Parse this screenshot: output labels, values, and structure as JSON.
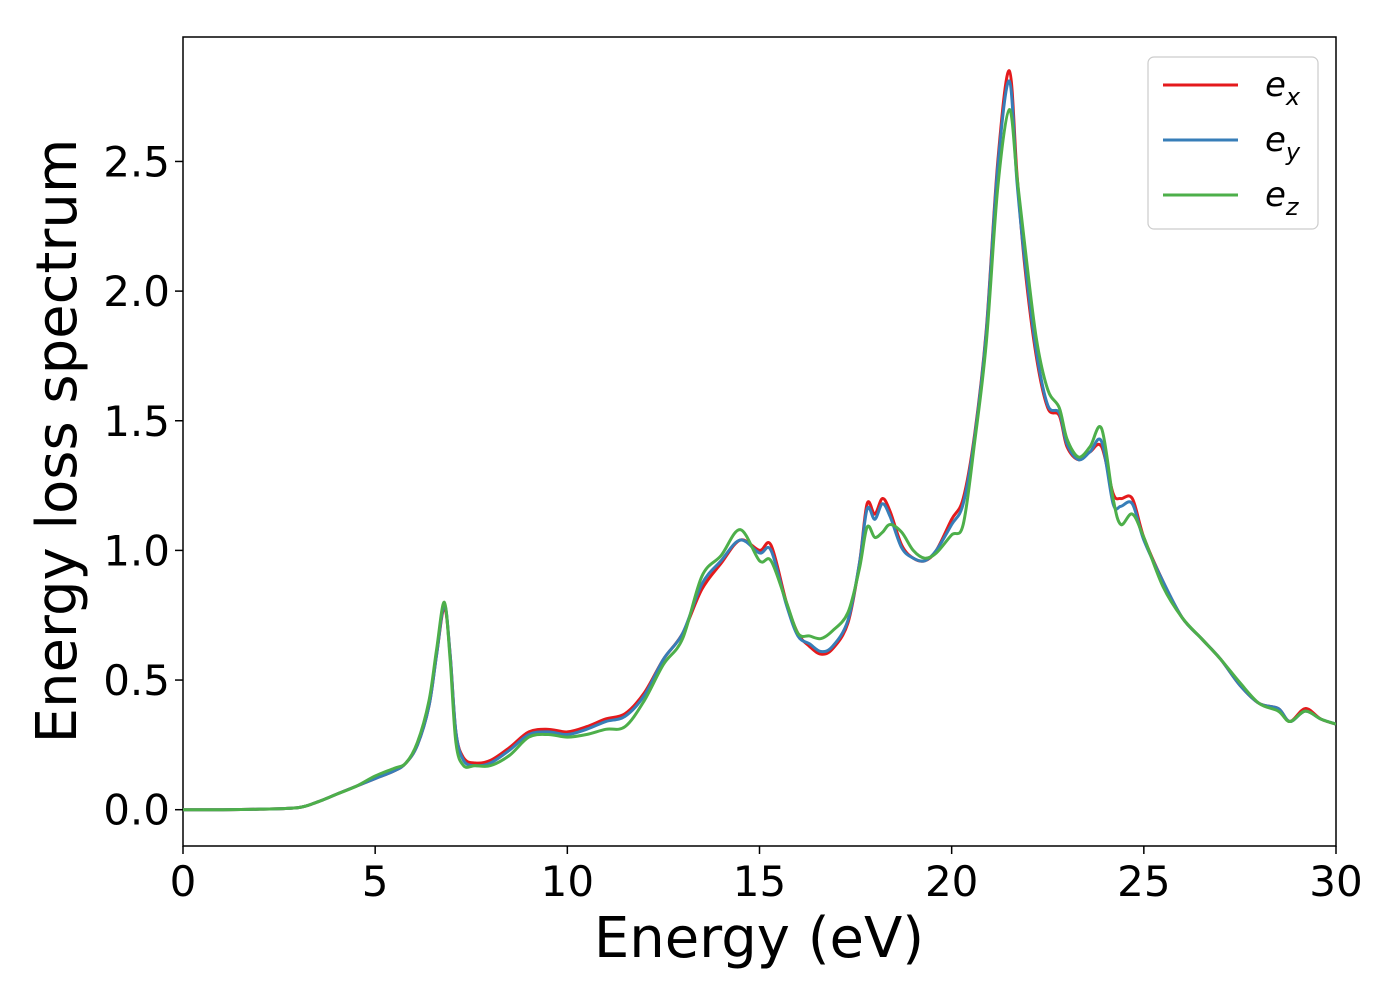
{
  "chart_data": {
    "type": "line",
    "xlabel": "Energy (eV)",
    "ylabel": "Energy loss spectrum",
    "xlim": [
      0,
      30
    ],
    "ylim": [
      -0.14,
      2.98
    ],
    "xticks": [
      0,
      5,
      10,
      15,
      20,
      25,
      30
    ],
    "xtick_labels": [
      "0",
      "5",
      "10",
      "15",
      "20",
      "25",
      "30"
    ],
    "yticks": [
      0.0,
      0.5,
      1.0,
      1.5,
      2.0,
      2.5
    ],
    "ytick_labels": [
      "0.0",
      "0.5",
      "1.0",
      "1.5",
      "2.0",
      "2.5"
    ],
    "grid": false,
    "legend_position": "top-right",
    "series": [
      {
        "name": "e_x",
        "label_base": "e",
        "label_sub": "x",
        "color": "#e41a1c",
        "x": [
          0,
          1,
          2,
          3,
          3.5,
          4,
          4.5,
          5,
          5.5,
          5.8,
          6.1,
          6.4,
          6.6,
          6.8,
          6.95,
          7.1,
          7.3,
          7.6,
          8,
          8.5,
          9,
          9.5,
          10,
          10.5,
          11,
          11.5,
          12,
          12.5,
          13,
          13.5,
          14,
          14.5,
          15,
          15.3,
          15.7,
          16,
          16.3,
          16.6,
          16.9,
          17.3,
          17.6,
          17.8,
          18,
          18.2,
          18.4,
          18.7,
          19,
          19.3,
          19.6,
          20,
          20.3,
          20.6,
          20.9,
          21.2,
          21.5,
          21.7,
          21.9,
          22.2,
          22.5,
          22.8,
          23,
          23.3,
          23.6,
          23.9,
          24.2,
          24.4,
          24.7,
          25,
          25.5,
          26,
          26.5,
          27,
          27.5,
          28,
          28.5,
          28.8,
          29.2,
          29.6,
          30
        ],
        "y": [
          0,
          0,
          0.002,
          0.008,
          0.03,
          0.06,
          0.09,
          0.12,
          0.15,
          0.18,
          0.25,
          0.4,
          0.6,
          0.78,
          0.6,
          0.3,
          0.2,
          0.18,
          0.19,
          0.24,
          0.3,
          0.31,
          0.3,
          0.32,
          0.35,
          0.37,
          0.45,
          0.58,
          0.68,
          0.85,
          0.95,
          1.04,
          1,
          1.02,
          0.8,
          0.68,
          0.63,
          0.6,
          0.62,
          0.72,
          0.95,
          1.18,
          1.14,
          1.2,
          1.15,
          1.02,
          0.97,
          0.96,
          1,
          1.12,
          1.2,
          1.45,
          1.85,
          2.5,
          2.85,
          2.45,
          2.1,
          1.75,
          1.55,
          1.52,
          1.4,
          1.35,
          1.38,
          1.4,
          1.22,
          1.2,
          1.2,
          1.05,
          0.88,
          0.74,
          0.66,
          0.58,
          0.48,
          0.41,
          0.39,
          0.34,
          0.39,
          0.35,
          0.33
        ]
      },
      {
        "name": "e_y",
        "label_base": "e",
        "label_sub": "y",
        "color": "#377eb8",
        "x": [
          0,
          1,
          2,
          3,
          3.5,
          4,
          4.5,
          5,
          5.5,
          5.8,
          6.1,
          6.4,
          6.6,
          6.8,
          6.95,
          7.1,
          7.3,
          7.6,
          8,
          8.5,
          9,
          9.5,
          10,
          10.5,
          11,
          11.5,
          12,
          12.5,
          13,
          13.5,
          14,
          14.5,
          15,
          15.3,
          15.7,
          16,
          16.3,
          16.6,
          16.9,
          17.3,
          17.6,
          17.8,
          18,
          18.2,
          18.4,
          18.7,
          19,
          19.3,
          19.6,
          20,
          20.3,
          20.6,
          20.9,
          21.2,
          21.5,
          21.7,
          21.9,
          22.2,
          22.5,
          22.8,
          23,
          23.3,
          23.6,
          23.9,
          24.2,
          24.4,
          24.7,
          25,
          25.5,
          26,
          26.5,
          27,
          27.5,
          28,
          28.5,
          28.8,
          29.2,
          29.6,
          30
        ],
        "y": [
          0,
          0,
          0.002,
          0.008,
          0.03,
          0.06,
          0.09,
          0.12,
          0.15,
          0.18,
          0.25,
          0.4,
          0.6,
          0.79,
          0.6,
          0.3,
          0.19,
          0.17,
          0.18,
          0.23,
          0.29,
          0.3,
          0.29,
          0.31,
          0.34,
          0.36,
          0.44,
          0.58,
          0.68,
          0.87,
          0.96,
          1.04,
          0.99,
          1,
          0.79,
          0.67,
          0.64,
          0.61,
          0.63,
          0.73,
          0.95,
          1.16,
          1.12,
          1.18,
          1.13,
          1.01,
          0.97,
          0.96,
          1,
          1.1,
          1.18,
          1.44,
          1.84,
          2.48,
          2.81,
          2.42,
          2.12,
          1.77,
          1.56,
          1.53,
          1.41,
          1.35,
          1.38,
          1.42,
          1.18,
          1.17,
          1.18,
          1.04,
          0.88,
          0.74,
          0.66,
          0.58,
          0.48,
          0.41,
          0.39,
          0.34,
          0.38,
          0.35,
          0.33
        ]
      },
      {
        "name": "e_z",
        "label_base": "e",
        "label_sub": "z",
        "color": "#4daf4a",
        "x": [
          0,
          1,
          2,
          3,
          3.5,
          4,
          4.5,
          5,
          5.5,
          5.8,
          6.1,
          6.4,
          6.6,
          6.8,
          6.95,
          7.1,
          7.3,
          7.6,
          8,
          8.5,
          9,
          9.5,
          10,
          10.5,
          11,
          11.5,
          12,
          12.5,
          13,
          13.5,
          14,
          14.5,
          15,
          15.3,
          15.7,
          16,
          16.3,
          16.6,
          16.9,
          17.3,
          17.6,
          17.8,
          18,
          18.2,
          18.4,
          18.7,
          19,
          19.3,
          19.6,
          20,
          20.3,
          20.6,
          20.9,
          21.2,
          21.5,
          21.7,
          21.9,
          22.2,
          22.5,
          22.8,
          23,
          23.3,
          23.6,
          23.9,
          24.2,
          24.4,
          24.7,
          25,
          25.5,
          26,
          26.5,
          27,
          27.5,
          28,
          28.5,
          28.8,
          29.2,
          29.6,
          30
        ],
        "y": [
          0,
          0,
          0.002,
          0.008,
          0.03,
          0.06,
          0.09,
          0.13,
          0.16,
          0.18,
          0.26,
          0.42,
          0.62,
          0.8,
          0.58,
          0.26,
          0.17,
          0.17,
          0.17,
          0.21,
          0.28,
          0.29,
          0.28,
          0.29,
          0.31,
          0.32,
          0.42,
          0.56,
          0.66,
          0.9,
          0.98,
          1.08,
          0.96,
          0.96,
          0.8,
          0.68,
          0.67,
          0.66,
          0.69,
          0.76,
          0.93,
          1.09,
          1.05,
          1.07,
          1.1,
          1.07,
          1,
          0.97,
          0.99,
          1.06,
          1.1,
          1.42,
          1.8,
          2.4,
          2.7,
          2.44,
          2.18,
          1.82,
          1.62,
          1.55,
          1.43,
          1.36,
          1.4,
          1.47,
          1.2,
          1.1,
          1.14,
          1.05,
          0.86,
          0.74,
          0.66,
          0.58,
          0.49,
          0.41,
          0.38,
          0.34,
          0.38,
          0.35,
          0.33
        ]
      }
    ]
  }
}
